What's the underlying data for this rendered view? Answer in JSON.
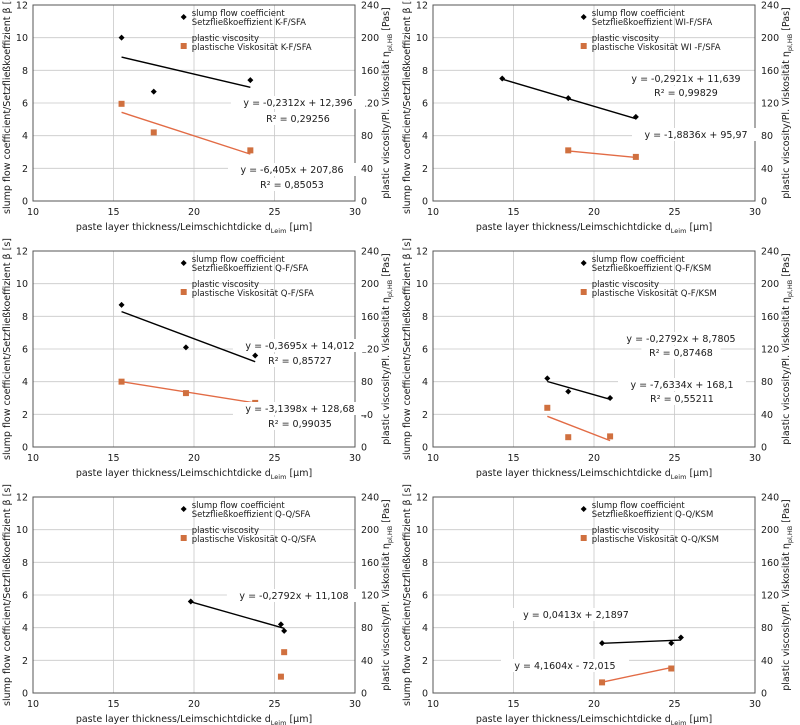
{
  "colors": {
    "black_series": "#000000",
    "orange_series": "#d0703f",
    "orange_line": "#e26b45",
    "grid": "#c8c8c8",
    "frame": "#555555"
  },
  "labels": {
    "xlabel": "paste layer thickness/Leimschichtdicke d",
    "xlabel_sub": "Leim",
    "xlabel_unit": "[µm]",
    "ylabel_left": "slump flow coefficient/Setzfließkoeffizient β [s]",
    "ylabel_right": "plastic viscosity/Pl. Viskosität η",
    "ylabel_right_sub": "pl,HB",
    "ylabel_right_unit": "[Pas]"
  },
  "chart_data": [
    {
      "type": "scatter",
      "xlim": [
        10,
        30
      ],
      "ylim_left": [
        0,
        12
      ],
      "ylim_right": [
        0,
        240
      ],
      "xticks": [
        10,
        15,
        20,
        25,
        30
      ],
      "yticks_left": [
        0,
        2,
        4,
        6,
        8,
        10,
        12
      ],
      "yticks_right": [
        0,
        40,
        80,
        120,
        160,
        200,
        240
      ],
      "grid": true,
      "legend": "top-right",
      "series": [
        {
          "name": "slump flow coefficient",
          "name2": "Setzfließkoeffizient K-F/SFA",
          "axis": "left",
          "marker": "diamond",
          "x": [
            15.5,
            17.5,
            23.5
          ],
          "y": [
            10.0,
            6.7,
            7.4
          ],
          "trend_x": [
            15.5,
            23.5
          ],
          "trend_y": [
            8.81,
            6.96
          ],
          "equation": "y = -0,2312x + 12,396",
          "r2": "R² = 0,29256"
        },
        {
          "name": "plastic viscosity",
          "name2": "plastische Viskosität K-F/SFA",
          "axis": "right",
          "marker": "square",
          "x": [
            15.5,
            17.5,
            23.5
          ],
          "y": [
            119,
            84,
            62
          ],
          "trend_x": [
            15.5,
            23.5
          ],
          "trend_y": [
            108.6,
            57.4
          ],
          "equation": "y = -6,405x + 207,86",
          "r2": "R² = 0,85053"
        }
      ]
    },
    {
      "type": "scatter",
      "xlim": [
        10,
        30
      ],
      "ylim_left": [
        0,
        12
      ],
      "ylim_right": [
        0,
        240
      ],
      "xticks": [
        10,
        15,
        20,
        25,
        30
      ],
      "yticks_left": [
        0,
        2,
        4,
        6,
        8,
        10,
        12
      ],
      "yticks_right": [
        0,
        40,
        80,
        120,
        160,
        200,
        240
      ],
      "grid": true,
      "legend": "top-right",
      "series": [
        {
          "name": "slump flow coefficient",
          "name2": "Setzfließkoeffizient WI-F/SFA",
          "axis": "left",
          "marker": "diamond",
          "x": [
            14.3,
            18.4,
            22.6
          ],
          "y": [
            7.5,
            6.3,
            5.15
          ],
          "trend_x": [
            14.3,
            22.6
          ],
          "trend_y": [
            7.46,
            5.04
          ],
          "equation": "y = -0,2921x + 11,639",
          "r2": "R² = 0,99829"
        },
        {
          "name": "plastic viscosity",
          "name2": "plastische Viskosität WI -F/SFA",
          "axis": "right",
          "marker": "square",
          "x": [
            18.4,
            22.6
          ],
          "y": [
            62,
            54
          ],
          "trend_x": [
            18.4,
            22.6
          ],
          "trend_y": [
            61.3,
            53.4
          ],
          "equation": "y = -1,8836x + 95,97",
          "r2": ""
        }
      ]
    },
    {
      "type": "scatter",
      "xlim": [
        10,
        30
      ],
      "ylim_left": [
        0,
        12
      ],
      "ylim_right": [
        0,
        240
      ],
      "xticks": [
        10,
        15,
        20,
        25,
        30
      ],
      "yticks_left": [
        0,
        2,
        4,
        6,
        8,
        10,
        12
      ],
      "yticks_right": [
        0,
        40,
        80,
        120,
        160,
        200,
        240
      ],
      "grid": true,
      "legend": "top-right",
      "series": [
        {
          "name": "slump flow coefficient",
          "name2": "Setzfließkoeffizient Q-F/SFA",
          "axis": "left",
          "marker": "diamond",
          "x": [
            15.5,
            19.5,
            23.8
          ],
          "y": [
            8.7,
            6.1,
            5.6
          ],
          "trend_x": [
            15.5,
            23.8
          ],
          "trend_y": [
            8.29,
            5.22
          ],
          "equation": "y = -0,3695x + 14,012",
          "r2": "R² = 0,85727"
        },
        {
          "name": "plastic viscosity",
          "name2": "plastische Viskosität Q-F/SFA",
          "axis": "right",
          "marker": "square",
          "x": [
            15.5,
            19.5,
            23.8
          ],
          "y": [
            80,
            66,
            54
          ],
          "trend_x": [
            15.5,
            23.8
          ],
          "trend_y": [
            80.0,
            53.9
          ],
          "equation": "y = -3,1398x + 128,68",
          "r2": "R² = 0,99035"
        }
      ]
    },
    {
      "type": "scatter",
      "xlim": [
        10,
        30
      ],
      "ylim_left": [
        0,
        12
      ],
      "ylim_right": [
        0,
        240
      ],
      "xticks": [
        10,
        15,
        20,
        25,
        30
      ],
      "yticks_left": [
        0,
        2,
        4,
        6,
        8,
        10,
        12
      ],
      "yticks_right": [
        0,
        40,
        80,
        120,
        160,
        200,
        240
      ],
      "grid": true,
      "legend": "top-right",
      "series": [
        {
          "name": "slump flow coefficient",
          "name2": "Setzfließkoeffizient Q-F/KSM",
          "axis": "left",
          "marker": "diamond",
          "x": [
            17.1,
            18.4,
            21.0
          ],
          "y": [
            4.2,
            3.4,
            3.0
          ],
          "trend_x": [
            17.1,
            21.0
          ],
          "trend_y": [
            4.01,
            2.92
          ],
          "equation": "y = -0,2792x + 8,7805",
          "r2": "R² = 0,87468"
        },
        {
          "name": "plastic viscosity",
          "name2": "plastische Viskosität Q-F/KSM",
          "axis": "right",
          "marker": "square",
          "x": [
            17.1,
            18.4,
            21.0
          ],
          "y": [
            48,
            12,
            13
          ],
          "trend_x": [
            17.1,
            21.0
          ],
          "trend_y": [
            37.6,
            7.8
          ],
          "equation": "y = -7,6334x + 168,1",
          "r2": "R² = 0,55211"
        }
      ]
    },
    {
      "type": "scatter",
      "xlim": [
        10,
        30
      ],
      "ylim_left": [
        0,
        12
      ],
      "ylim_right": [
        0,
        240
      ],
      "xticks": [
        10,
        15,
        20,
        25,
        30
      ],
      "yticks_left": [
        0,
        2,
        4,
        6,
        8,
        10,
        12
      ],
      "yticks_right": [
        0,
        40,
        80,
        120,
        160,
        200,
        240
      ],
      "grid": true,
      "legend": "top-right",
      "series": [
        {
          "name": "slump flow coefficient",
          "name2": "Setzfließkoeffizient Q-Q/SFA",
          "axis": "left",
          "marker": "diamond",
          "x": [
            19.8,
            25.4,
            25.6
          ],
          "y": [
            5.6,
            4.2,
            3.8
          ],
          "trend_x": [
            19.8,
            25.6
          ],
          "trend_y": [
            5.58,
            3.96
          ],
          "equation": "y = -0,2792x + 11,108",
          "r2": ""
        },
        {
          "name": "plastic viscosity",
          "name2": "plastische Viskosität Q-Q/SFA",
          "axis": "right",
          "marker": "square",
          "x": [
            25.6,
            25.4
          ],
          "y": [
            50,
            20
          ],
          "trend_x": [],
          "trend_y": [],
          "equation": "",
          "r2": ""
        }
      ]
    },
    {
      "type": "scatter",
      "xlim": [
        10,
        30
      ],
      "ylim_left": [
        0,
        12
      ],
      "ylim_right": [
        0,
        240
      ],
      "xticks": [
        10,
        15,
        20,
        25,
        30
      ],
      "yticks_left": [
        0,
        2,
        4,
        6,
        8,
        10,
        12
      ],
      "yticks_right": [
        0,
        40,
        80,
        120,
        160,
        200,
        240
      ],
      "grid": true,
      "legend": "top-right",
      "series": [
        {
          "name": "slump flow coefficient",
          "name2": "Setzfließkoeffizient Q-Q/KSM",
          "axis": "left",
          "marker": "diamond",
          "x": [
            20.5,
            24.8,
            25.4
          ],
          "y": [
            3.05,
            3.05,
            3.4
          ],
          "trend_x": [
            20.5,
            25.4
          ],
          "trend_y": [
            3.04,
            3.24
          ],
          "equation": "y = 0,0413x + 2,1897",
          "r2": ""
        },
        {
          "name": "plastic viscosity",
          "name2": "plastische Viskosität Q-Q/KSM",
          "axis": "right",
          "marker": "square",
          "x": [
            20.5,
            24.8
          ],
          "y": [
            13,
            30
          ],
          "trend_x": [
            20.5,
            24.8
          ],
          "trend_y": [
            13.3,
            31.2
          ],
          "equation": "y = 4,1604x - 72,015",
          "r2": ""
        }
      ]
    }
  ]
}
